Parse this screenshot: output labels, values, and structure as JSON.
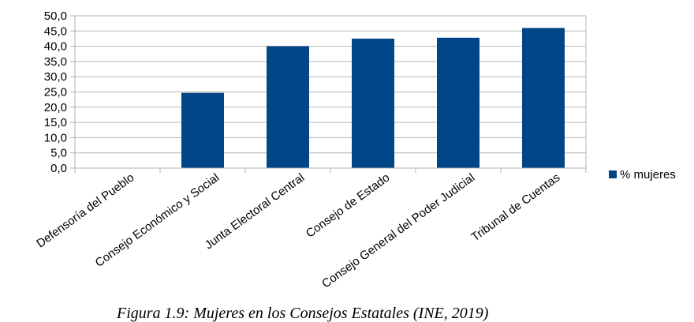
{
  "chart_data": {
    "type": "bar",
    "categories": [
      "Defensoría del Pueblo",
      "Consejo Económico y Social",
      "Junta Electoral Central",
      "Consejo de Estado",
      "Consejo General del Poder Judicial",
      "Tribunal de Cuentas"
    ],
    "series": [
      {
        "name": "% mujeres",
        "values": [
          0,
          24.7,
          40.0,
          42.5,
          42.8,
          46.0
        ]
      }
    ],
    "ylim": [
      0,
      50
    ],
    "yticks": [
      "0,0",
      "5,0",
      "10,0",
      "15,0",
      "20,0",
      "25,0",
      "30,0",
      "35,0",
      "40,0",
      "45,0",
      "50,0"
    ],
    "grid": true,
    "legend_position": "right",
    "bar_color": "#004586"
  },
  "caption": "Figura 1.9: Mujeres en los Consejos Estatales (INE, 2019)"
}
